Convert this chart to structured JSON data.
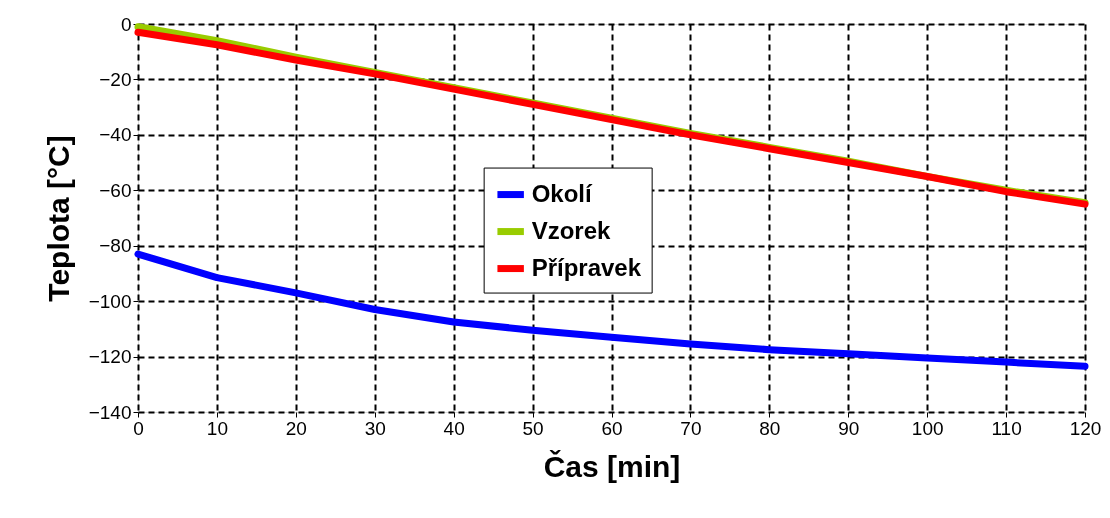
{
  "chart_data": {
    "type": "line",
    "xlabel": "Čas [min]",
    "ylabel": "Teplota [°C]",
    "x": [
      0,
      10,
      20,
      30,
      40,
      50,
      60,
      70,
      80,
      90,
      100,
      110,
      120
    ],
    "series": [
      {
        "name": "Okolí",
        "color": "#0000ff",
        "values": [
          -83,
          -91.5,
          -97,
          -103,
          -107.5,
          -110.5,
          -113,
          -115.5,
          -117.5,
          -119,
          -120.5,
          -122,
          -123.5
        ]
      },
      {
        "name": "Vzorek",
        "color": "#99cc00",
        "values": [
          -1,
          -6,
          -12,
          -17.5,
          -23,
          -28.5,
          -34,
          -39.5,
          -44.5,
          -49.5,
          -55,
          -60,
          -64.5
        ]
      },
      {
        "name": "Přípravek",
        "color": "#ff0000",
        "values": [
          -3,
          -7.5,
          -13,
          -18,
          -23.5,
          -29,
          -34.5,
          -40,
          -45,
          -50,
          -55,
          -60.5,
          -65
        ]
      }
    ],
    "xlim": [
      0,
      120
    ],
    "xticks": [
      0,
      10,
      20,
      30,
      40,
      50,
      60,
      70,
      80,
      90,
      100,
      110,
      120
    ],
    "ylim": [
      -140,
      0
    ],
    "yticks": [
      -140,
      -120,
      -100,
      -80,
      -60,
      -40,
      -20,
      0
    ],
    "grid": true,
    "legend": "center",
    "marker": "none",
    "line_style": "solid"
  }
}
